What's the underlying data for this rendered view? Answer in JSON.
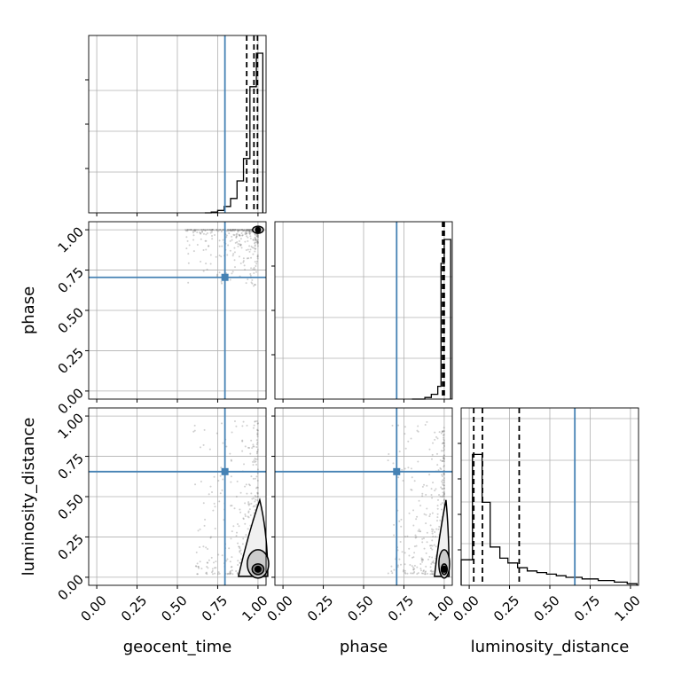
{
  "chart_data": {
    "type": "corner",
    "parameters": [
      "geocent_time",
      "phase",
      "luminosity_distance"
    ],
    "tick_labels": [
      "0.00",
      "0.25",
      "0.50",
      "0.75",
      "1.00"
    ],
    "tick_values": [
      0,
      0.25,
      0.5,
      0.75,
      1.0
    ],
    "axis_ranges": {
      "geocent_time": [
        -0.05,
        1.05
      ],
      "phase": [
        -0.05,
        1.05
      ],
      "luminosity_distance": [
        -0.05,
        1.05
      ]
    },
    "truths": {
      "geocent_time": 0.795,
      "phase": 0.705,
      "luminosity_distance": 0.655
    },
    "truth_color": "#4682b4",
    "grid": true,
    "histograms": {
      "geocent_time": {
        "bins": [
          0.67,
          0.71,
          0.75,
          0.79,
          0.83,
          0.87,
          0.91,
          0.95,
          0.99,
          1.03
        ],
        "counts": [
          0.0,
          0.005,
          0.015,
          0.04,
          0.09,
          0.2,
          0.34,
          0.79,
          1.0
        ],
        "quantiles": [
          0.93,
          0.975,
          0.997
        ]
      },
      "phase": {
        "bins": [
          0.8,
          0.84,
          0.88,
          0.92,
          0.96,
          0.98,
          1.0,
          1.04
        ],
        "counts": [
          0.0,
          0.0,
          0.01,
          0.03,
          0.08,
          0.85,
          1.0
        ],
        "quantiles": [
          0.99,
          0.995,
          1.0
        ]
      },
      "luminosity_distance": {
        "bins": [
          -0.05,
          0.02,
          0.08,
          0.13,
          0.19,
          0.24,
          0.3,
          0.36,
          0.42,
          0.48,
          0.54,
          0.6,
          0.7,
          0.8,
          0.9,
          0.98,
          1.04
        ],
        "counts": [
          0.16,
          0.82,
          0.52,
          0.24,
          0.17,
          0.14,
          0.11,
          0.09,
          0.08,
          0.07,
          0.06,
          0.05,
          0.04,
          0.03,
          0.02,
          0.01
        ],
        "quantiles": [
          0.028,
          0.082,
          0.31
        ]
      }
    },
    "joint_peaks": {
      "geocent_time__phase": [
        1.0,
        1.0
      ],
      "geocent_time__luminosity_distance": [
        1.0,
        0.05
      ],
      "phase__luminosity_distance": [
        1.0,
        0.05
      ]
    }
  }
}
